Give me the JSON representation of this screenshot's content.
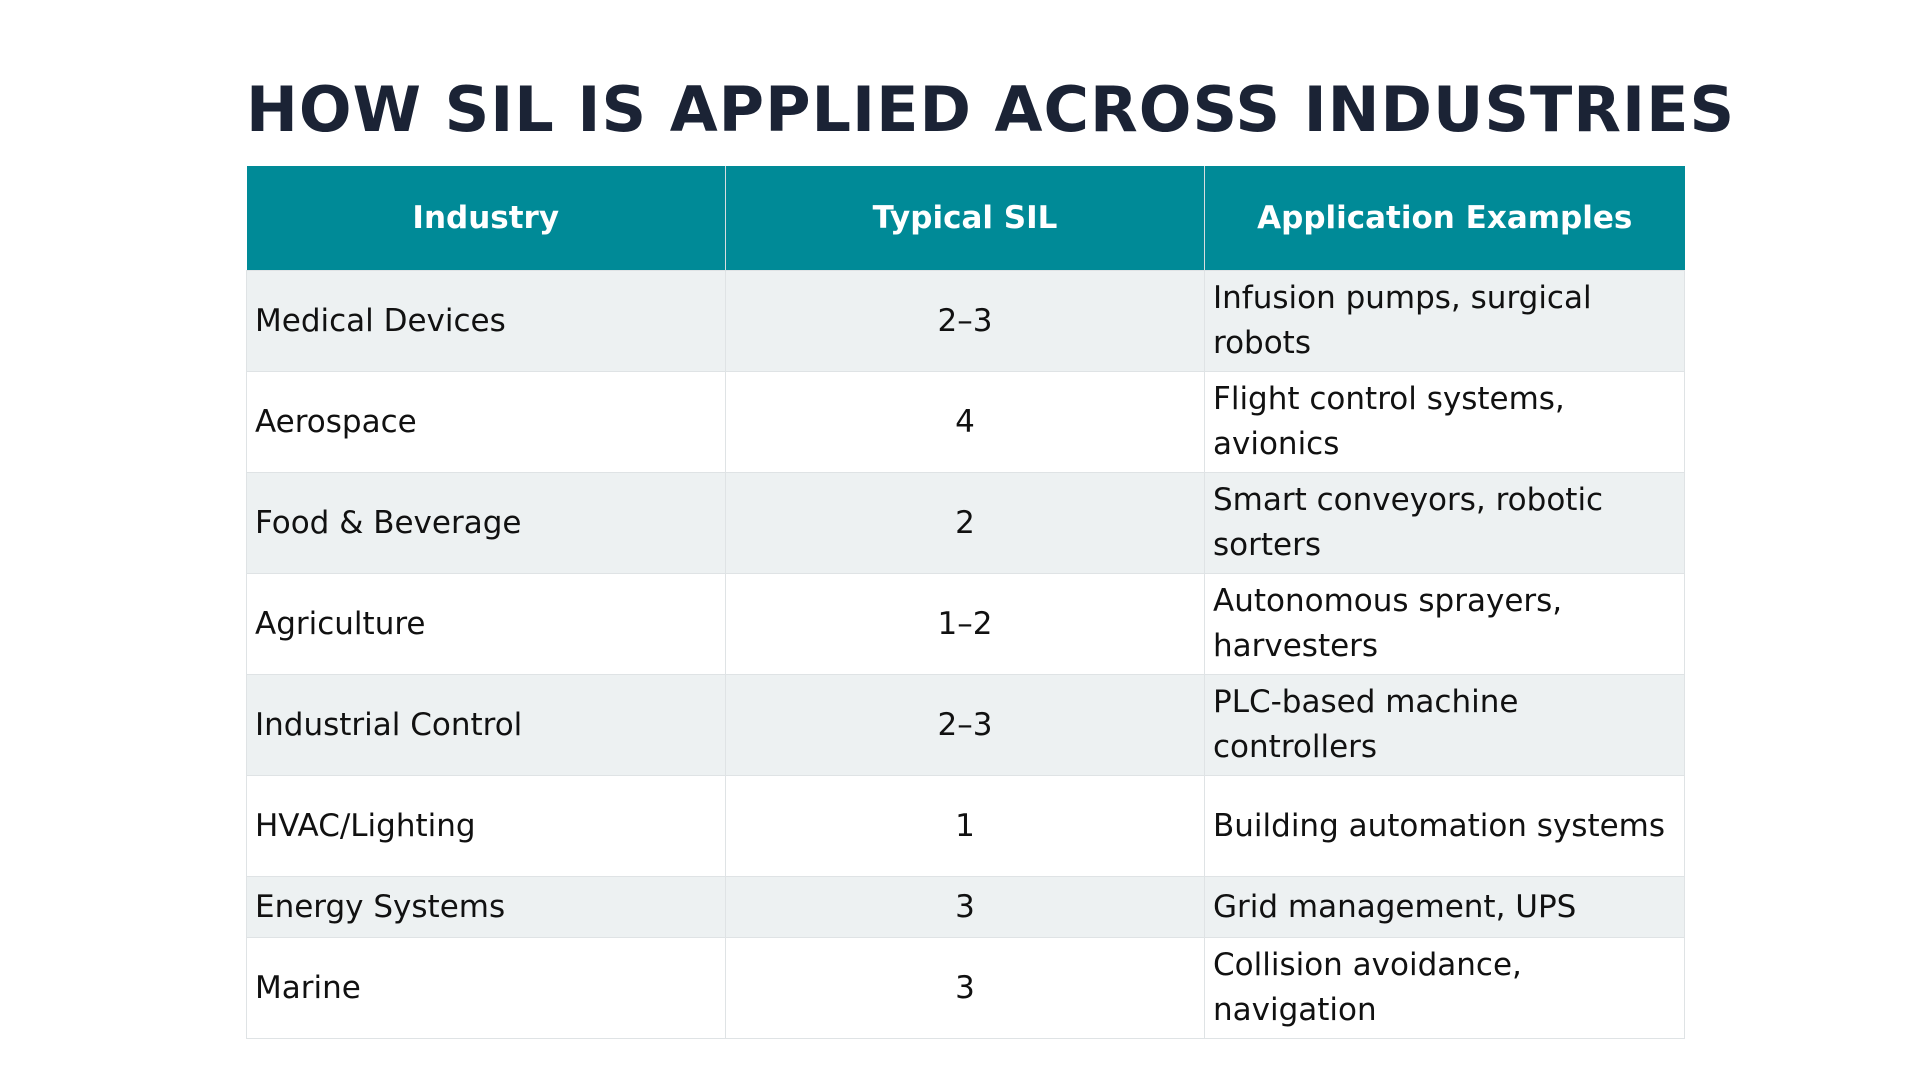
{
  "title": "HOW SIL IS APPLIED ACROSS INDUSTRIES",
  "table": {
    "headers": [
      "Industry",
      "Typical SIL",
      "Application Examples"
    ],
    "rows": [
      {
        "industry": "Medical Devices",
        "sil": "2–3",
        "examples": "Infusion pumps, surgical robots"
      },
      {
        "industry": "Aerospace",
        "sil": "4",
        "examples": "Flight control systems, avionics"
      },
      {
        "industry": "Food & Beverage",
        "sil": "2",
        "examples": "Smart conveyors, robotic sorters"
      },
      {
        "industry": "Agriculture",
        "sil": "1–2",
        "examples": "Autonomous sprayers, harvesters"
      },
      {
        "industry": "Industrial Control",
        "sil": "2–3",
        "examples": "PLC-based machine controllers"
      },
      {
        "industry": "HVAC/Lighting",
        "sil": "1",
        "examples": "Building automation systems"
      },
      {
        "industry": "Energy Systems",
        "sil": "3",
        "examples": "Grid management, UPS"
      },
      {
        "industry": "Marine",
        "sil": "3",
        "examples": "Collision avoidance, navigation"
      }
    ]
  },
  "colors": {
    "header_bg": "#008a97",
    "title": "#1b2335",
    "row_alt": "#edf1f2"
  }
}
